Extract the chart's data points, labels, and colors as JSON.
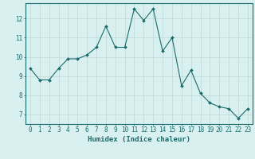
{
  "x": [
    0,
    1,
    2,
    3,
    4,
    5,
    6,
    7,
    8,
    9,
    10,
    11,
    12,
    13,
    14,
    15,
    16,
    17,
    18,
    19,
    20,
    21,
    22,
    23
  ],
  "y": [
    9.4,
    8.8,
    8.8,
    9.4,
    9.9,
    9.9,
    10.1,
    10.5,
    11.6,
    10.5,
    10.5,
    12.5,
    11.9,
    12.5,
    10.3,
    11.0,
    8.5,
    9.3,
    8.1,
    7.6,
    7.4,
    7.3,
    6.8,
    7.3
  ],
  "line_color": "#1a6b6b",
  "marker": "D",
  "marker_size": 2.0,
  "bg_color": "#d9f0f0",
  "grid_color": "#c0d8d8",
  "xlabel": "Humidex (Indice chaleur)",
  "xlim": [
    -0.5,
    23.5
  ],
  "ylim": [
    6.5,
    12.8
  ],
  "yticks": [
    7,
    8,
    9,
    10,
    11,
    12
  ],
  "xticks": [
    0,
    1,
    2,
    3,
    4,
    5,
    6,
    7,
    8,
    9,
    10,
    11,
    12,
    13,
    14,
    15,
    16,
    17,
    18,
    19,
    20,
    21,
    22,
    23
  ],
  "tick_color": "#1a6b6b",
  "label_fontsize": 6.5,
  "tick_fontsize": 5.5
}
